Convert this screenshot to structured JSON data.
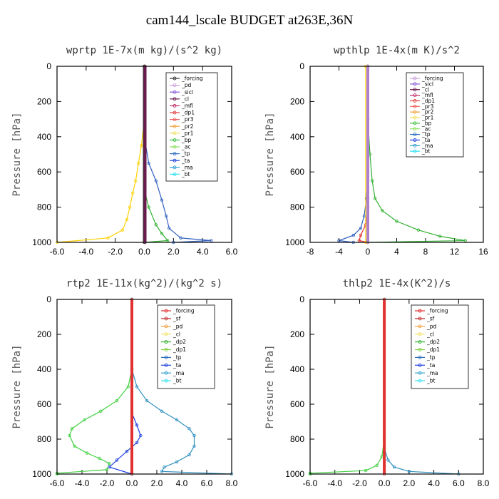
{
  "figure_title": "cam144_lscale  BUDGET at263E,36N",
  "chart_data": [
    {
      "type": "line",
      "title": "wprtp   1E-7x(m kg)/(s^2 kg)",
      "ylabel": "Pressure [hPa]",
      "xlim": [
        -6,
        6
      ],
      "ylim": [
        1000,
        0
      ],
      "xticks": [
        "-6.0",
        "-4.0",
        "-2.0",
        "0.0",
        "2.0",
        "4.0",
        "6.0"
      ],
      "yticks": [
        "0",
        "200",
        "400",
        "600",
        "800",
        "1000"
      ],
      "legend": [
        {
          "label": "_forcing",
          "color": "#333333"
        },
        {
          "label": "_pd",
          "color": "#c9a0dc"
        },
        {
          "label": "_sicl",
          "color": "#8a5ad6"
        },
        {
          "label": "_cl",
          "color": "#6a1b4d"
        },
        {
          "label": "_mfl",
          "color": "#c0306a"
        },
        {
          "label": "_dp1",
          "color": "#e04040"
        },
        {
          "label": "_pr3",
          "color": "#f06060"
        },
        {
          "label": "_pr2",
          "color": "#f0a040"
        },
        {
          "label": "_pr1",
          "color": "#f0e060"
        },
        {
          "label": "_bp",
          "color": "#40c040"
        },
        {
          "label": "_ac",
          "color": "#90e060"
        },
        {
          "label": "_tp",
          "color": "#3070c0"
        },
        {
          "label": "_ta",
          "color": "#2040e0"
        },
        {
          "label": "_ma",
          "color": "#30a0d0"
        },
        {
          "label": "_bt",
          "color": "#30e0f0"
        }
      ],
      "series": [
        {
          "name": "_pr1",
          "color": "#ffd000",
          "points": [
            [
              0,
              0
            ],
            [
              0,
              300
            ],
            [
              -0.2,
              450
            ],
            [
              -0.4,
              550
            ],
            [
              -0.6,
              650
            ],
            [
              -0.8,
              720
            ],
            [
              -1.0,
              800
            ],
            [
              -1.2,
              870
            ],
            [
              -1.5,
              930
            ],
            [
              -2.5,
              975
            ],
            [
              -6.0,
              1000
            ]
          ]
        },
        {
          "name": "_ta",
          "color": "#3060c0",
          "points": [
            [
              0,
              0
            ],
            [
              0,
              400
            ],
            [
              0.3,
              550
            ],
            [
              0.8,
              650
            ],
            [
              1.2,
              760
            ],
            [
              1.5,
              850
            ],
            [
              1.7,
              920
            ],
            [
              2.5,
              975
            ],
            [
              4.6,
              990
            ],
            [
              2.0,
              1000
            ]
          ]
        },
        {
          "name": "_bp",
          "color": "#30b030",
          "points": [
            [
              0,
              0
            ],
            [
              0,
              700
            ],
            [
              0.3,
              800
            ],
            [
              0.8,
              900
            ],
            [
              1.2,
              950
            ],
            [
              1.6,
              990
            ],
            [
              0,
              1000
            ]
          ]
        },
        {
          "name": "_forcing",
          "color": "#333333",
          "points": [
            [
              0,
              0
            ],
            [
              0,
              1000
            ]
          ]
        },
        {
          "name": "_cl",
          "color": "#6a1b4d",
          "points": [
            [
              0.05,
              0
            ],
            [
              0.05,
              1000
            ]
          ]
        }
      ]
    },
    {
      "type": "line",
      "title": "wpthlp   1E-4x(m K)/s^2",
      "ylabel": "Pressure [hPa]",
      "xlim": [
        -8,
        16
      ],
      "ylim": [
        1000,
        0
      ],
      "xticks": [
        "-8",
        "-4",
        "0",
        "4",
        "8",
        "12",
        "16"
      ],
      "yticks": [
        "0",
        "200",
        "400",
        "600",
        "800",
        "1000"
      ],
      "legend": [
        {
          "label": "_forcing",
          "color": "#c9a0dc"
        },
        {
          "label": "_sicl",
          "color": "#8a5ad6"
        },
        {
          "label": "_cl",
          "color": "#6a1b4d"
        },
        {
          "label": "_mfl",
          "color": "#c0306a"
        },
        {
          "label": "_dp1",
          "color": "#e04040"
        },
        {
          "label": "_pr3",
          "color": "#f06060"
        },
        {
          "label": "_pr2",
          "color": "#f0a040"
        },
        {
          "label": "_pr1",
          "color": "#f0e060"
        },
        {
          "label": "_bp",
          "color": "#40c040"
        },
        {
          "label": "_ac",
          "color": "#90e060"
        },
        {
          "label": "_tp",
          "color": "#3070c0"
        },
        {
          "label": "_ta",
          "color": "#2040e0"
        },
        {
          "label": "_ma",
          "color": "#30a0d0"
        },
        {
          "label": "_bt",
          "color": "#30e0f0"
        }
      ],
      "series": [
        {
          "name": "_bp",
          "color": "#30b030",
          "points": [
            [
              0,
              0
            ],
            [
              0,
              300
            ],
            [
              0.3,
              500
            ],
            [
              0.6,
              650
            ],
            [
              1.0,
              750
            ],
            [
              2.0,
              820
            ],
            [
              4.0,
              880
            ],
            [
              7.0,
              930
            ],
            [
              10.0,
              965
            ],
            [
              13.5,
              990
            ],
            [
              0,
              1000
            ]
          ]
        },
        {
          "name": "_ta",
          "color": "#3060c0",
          "points": [
            [
              0,
              0
            ],
            [
              0,
              600
            ],
            [
              -0.2,
              750
            ],
            [
              -0.5,
              850
            ],
            [
              -1.0,
              920
            ],
            [
              -2.0,
              960
            ],
            [
              -4.0,
              990
            ],
            [
              -2.0,
              1000
            ]
          ]
        },
        {
          "name": "_dp1",
          "color": "#e03030",
          "points": [
            [
              0,
              0
            ],
            [
              0,
              800
            ],
            [
              -0.3,
              900
            ],
            [
              -1.0,
              960
            ],
            [
              -1.2,
              990
            ],
            [
              0,
              1000
            ]
          ]
        },
        {
          "name": "_pr1",
          "color": "#ffd000",
          "points": [
            [
              -0.3,
              0
            ],
            [
              -0.3,
              1000
            ]
          ]
        },
        {
          "name": "_pd",
          "color": "#b080d0",
          "points": [
            [
              0,
              0
            ],
            [
              0,
              1000
            ]
          ]
        }
      ]
    },
    {
      "type": "line",
      "title": "rtp2   1E-11x(kg^2)/(kg^2 s)",
      "ylabel": "Pressure [hPa]",
      "xlim": [
        -6,
        8
      ],
      "ylim": [
        1000,
        0
      ],
      "xticks": [
        "-6.0",
        "-4.0",
        "-2.0",
        "0.0",
        "2.0",
        "4.0",
        "6.0",
        "8.0"
      ],
      "yticks": [
        "0",
        "200",
        "400",
        "600",
        "800",
        "1000"
      ],
      "legend": [
        {
          "label": "_forcing",
          "color": "#e03030"
        },
        {
          "label": "_sf",
          "color": "#c03030"
        },
        {
          "label": "_pd",
          "color": "#f0a040"
        },
        {
          "label": "_cl",
          "color": "#f0e060"
        },
        {
          "label": "_dp2",
          "color": "#30b030"
        },
        {
          "label": "_dp1",
          "color": "#80d040"
        },
        {
          "label": "_tp",
          "color": "#3070c0"
        },
        {
          "label": "_ta",
          "color": "#2040e0"
        },
        {
          "label": "_ma",
          "color": "#30a0d0"
        },
        {
          "label": "_bt",
          "color": "#30e0f0"
        }
      ],
      "series": [
        {
          "name": "_dp1",
          "color": "#40d040",
          "points": [
            [
              0,
              0
            ],
            [
              0,
              400
            ],
            [
              -0.3,
              500
            ],
            [
              -1.2,
              580
            ],
            [
              -2.5,
              640
            ],
            [
              -3.8,
              690
            ],
            [
              -4.8,
              740
            ],
            [
              -5.0,
              780
            ],
            [
              -4.6,
              840
            ],
            [
              -3.6,
              880
            ],
            [
              -2.6,
              910
            ],
            [
              -1.8,
              940
            ],
            [
              -2.0,
              975
            ],
            [
              -6.0,
              995
            ],
            [
              -6.0,
              1000
            ]
          ]
        },
        {
          "name": "_ma",
          "color": "#3090c0",
          "points": [
            [
              0,
              0
            ],
            [
              0,
              400
            ],
            [
              0.4,
              500
            ],
            [
              1.2,
              580
            ],
            [
              2.4,
              640
            ],
            [
              3.6,
              690
            ],
            [
              4.6,
              740
            ],
            [
              5.0,
              780
            ],
            [
              5.0,
              840
            ],
            [
              4.6,
              890
            ],
            [
              3.6,
              930
            ],
            [
              2.6,
              960
            ],
            [
              2.4,
              985
            ],
            [
              8.0,
              1000
            ]
          ]
        },
        {
          "name": "_ta",
          "color": "#2040e0",
          "points": [
            [
              0,
              0
            ],
            [
              0,
              650
            ],
            [
              0.4,
              720
            ],
            [
              0.7,
              780
            ],
            [
              0.4,
              820
            ],
            [
              -0.4,
              870
            ],
            [
              -1.2,
              920
            ],
            [
              -1.8,
              960
            ],
            [
              0,
              1000
            ]
          ]
        },
        {
          "name": "_forcing",
          "color": "#e03030",
          "points": [
            [
              0,
              0
            ],
            [
              0,
              1000
            ]
          ]
        }
      ]
    },
    {
      "type": "line",
      "title": "thlp2   1E-4x(K^2)/s",
      "ylabel": "Pressure [hPa]",
      "xlim": [
        -6,
        8
      ],
      "ylim": [
        1000,
        0
      ],
      "xticks": [
        "-6.0",
        "-4.0",
        "-2.0",
        "0.0",
        "2.0",
        "4.0",
        "6.0",
        "8.0"
      ],
      "yticks": [
        "0",
        "200",
        "400",
        "600",
        "800",
        "1000"
      ],
      "legend": [
        {
          "label": "_forcing",
          "color": "#e03030"
        },
        {
          "label": "_sf",
          "color": "#c03030"
        },
        {
          "label": "_pd",
          "color": "#f0a040"
        },
        {
          "label": "_cl",
          "color": "#f0e060"
        },
        {
          "label": "_dp2",
          "color": "#30b030"
        },
        {
          "label": "_dp1",
          "color": "#80d040"
        },
        {
          "label": "_tp",
          "color": "#3070c0"
        },
        {
          "label": "_ta",
          "color": "#2040e0"
        },
        {
          "label": "_ma",
          "color": "#30a0d0"
        },
        {
          "label": "_bt",
          "color": "#30e0f0"
        }
      ],
      "series": [
        {
          "name": "_dp1",
          "color": "#40d040",
          "points": [
            [
              0,
              0
            ],
            [
              0,
              800
            ],
            [
              -0.2,
              900
            ],
            [
              -0.6,
              950
            ],
            [
              -1.5,
              980
            ],
            [
              -6.0,
              995
            ],
            [
              -6.0,
              1000
            ]
          ]
        },
        {
          "name": "_ma",
          "color": "#3090c0",
          "points": [
            [
              0,
              0
            ],
            [
              0,
              850
            ],
            [
              0.3,
              920
            ],
            [
              0.8,
              960
            ],
            [
              2.0,
              985
            ],
            [
              6.0,
              1000
            ]
          ]
        },
        {
          "name": "_forcing",
          "color": "#e03030",
          "points": [
            [
              0,
              0
            ],
            [
              0,
              1000
            ]
          ]
        }
      ]
    }
  ]
}
